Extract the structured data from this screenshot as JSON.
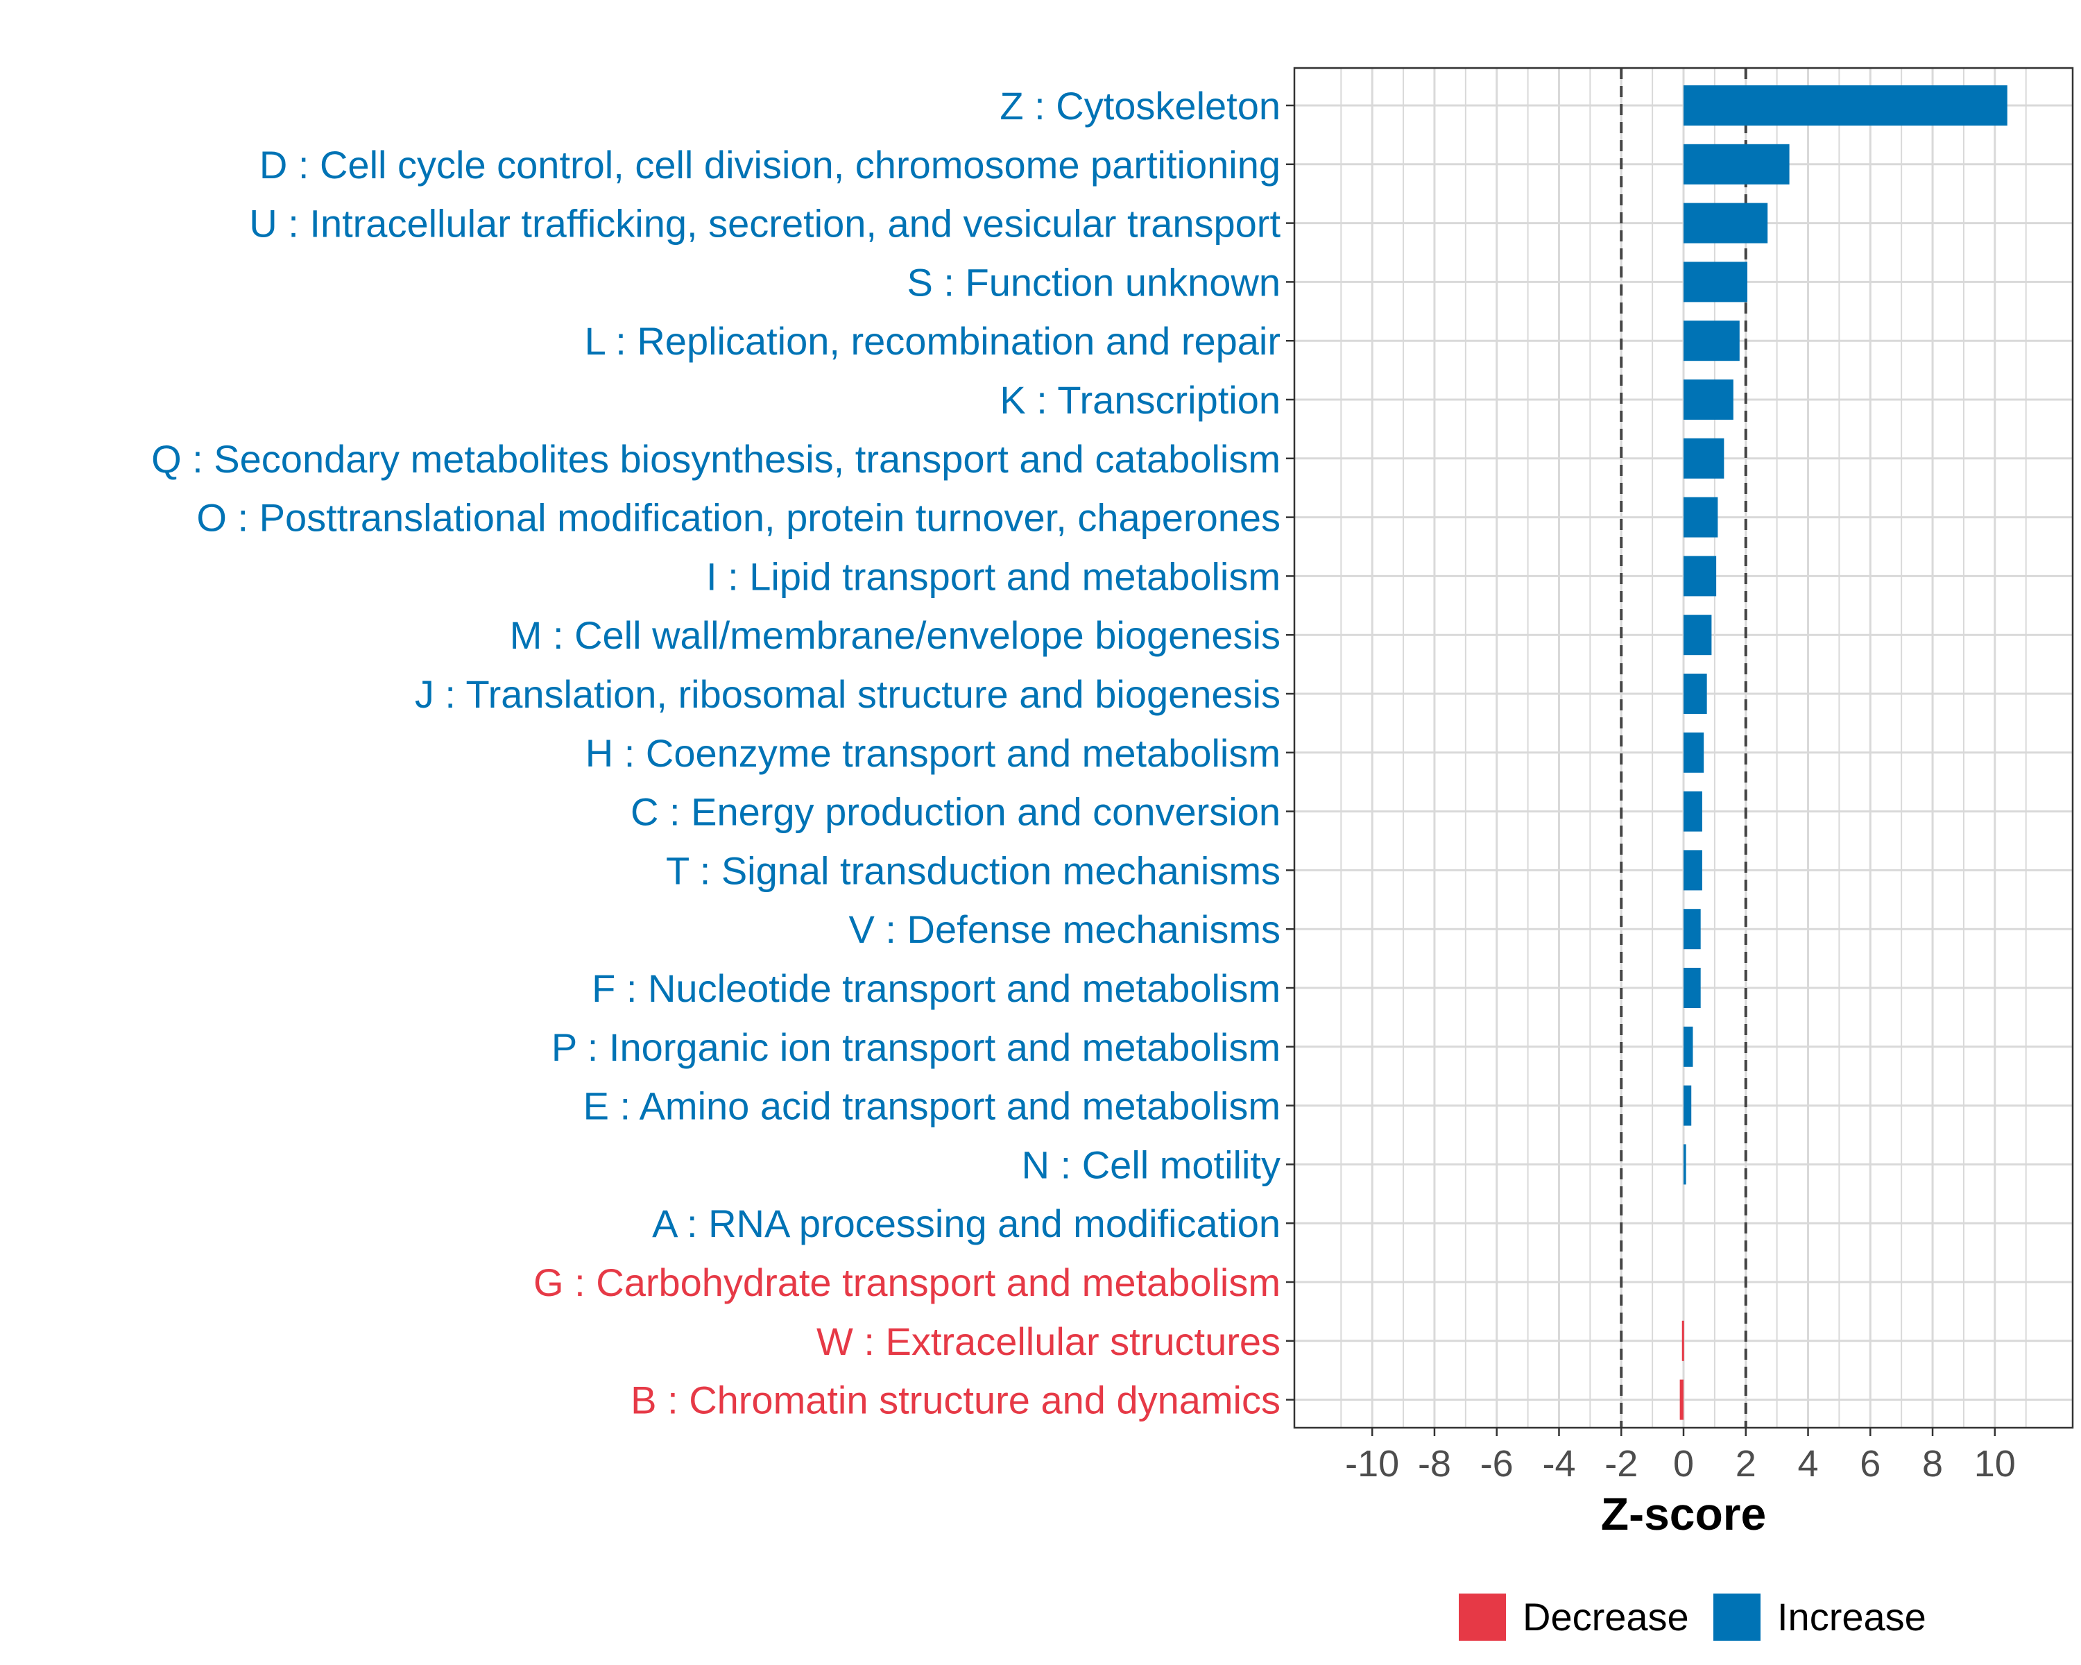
{
  "chart_data": {
    "type": "bar",
    "orientation": "horizontal",
    "title": "",
    "xlabel": "Z-score",
    "ylabel": "",
    "xlim": [
      -12.5,
      12.5
    ],
    "xticks": [
      -10,
      -8,
      -6,
      -4,
      -2,
      0,
      2,
      4,
      6,
      8,
      10
    ],
    "threshold_lines": [
      -2,
      2
    ],
    "grid": true,
    "legend_position": "bottom",
    "colors": {
      "Decrease": "#e63946",
      "Increase": "#0073b5"
    },
    "legend": [
      {
        "label": "Decrease",
        "color": "#e63946"
      },
      {
        "label": "Increase",
        "color": "#0073b5"
      }
    ],
    "categories": [
      {
        "label": "Z : Cytoskeleton",
        "value": 10.4,
        "direction": "Increase"
      },
      {
        "label": "D : Cell cycle control, cell division, chromosome partitioning",
        "value": 3.4,
        "direction": "Increase"
      },
      {
        "label": "U : Intracellular trafficking, secretion, and vesicular transport",
        "value": 2.7,
        "direction": "Increase"
      },
      {
        "label": "S : Function unknown",
        "value": 2.05,
        "direction": "Increase"
      },
      {
        "label": "L : Replication, recombination and repair",
        "value": 1.8,
        "direction": "Increase"
      },
      {
        "label": "K : Transcription",
        "value": 1.6,
        "direction": "Increase"
      },
      {
        "label": "Q : Secondary metabolites biosynthesis, transport and catabolism",
        "value": 1.3,
        "direction": "Increase"
      },
      {
        "label": "O : Posttranslational modification, protein turnover, chaperones",
        "value": 1.1,
        "direction": "Increase"
      },
      {
        "label": "I : Lipid transport and metabolism",
        "value": 1.05,
        "direction": "Increase"
      },
      {
        "label": "M : Cell wall/membrane/envelope biogenesis",
        "value": 0.9,
        "direction": "Increase"
      },
      {
        "label": "J : Translation, ribosomal structure and biogenesis",
        "value": 0.75,
        "direction": "Increase"
      },
      {
        "label": "H : Coenzyme transport and metabolism",
        "value": 0.65,
        "direction": "Increase"
      },
      {
        "label": "C : Energy production and conversion",
        "value": 0.6,
        "direction": "Increase"
      },
      {
        "label": "T : Signal transduction mechanisms",
        "value": 0.6,
        "direction": "Increase"
      },
      {
        "label": "V : Defense mechanisms",
        "value": 0.55,
        "direction": "Increase"
      },
      {
        "label": "F : Nucleotide transport and metabolism",
        "value": 0.55,
        "direction": "Increase"
      },
      {
        "label": "P : Inorganic ion transport and metabolism",
        "value": 0.3,
        "direction": "Increase"
      },
      {
        "label": "E : Amino acid transport and metabolism",
        "value": 0.25,
        "direction": "Increase"
      },
      {
        "label": "N : Cell motility",
        "value": 0.08,
        "direction": "Increase"
      },
      {
        "label": "A : RNA processing and modification",
        "value": 0.0,
        "direction": "Increase"
      },
      {
        "label": "G : Carbohydrate transport and metabolism",
        "value": 0.0,
        "direction": "Decrease"
      },
      {
        "label": "W : Extracellular structures",
        "value": -0.05,
        "direction": "Decrease"
      },
      {
        "label": "B : Chromatin structure and dynamics",
        "value": -0.12,
        "direction": "Decrease"
      }
    ]
  }
}
